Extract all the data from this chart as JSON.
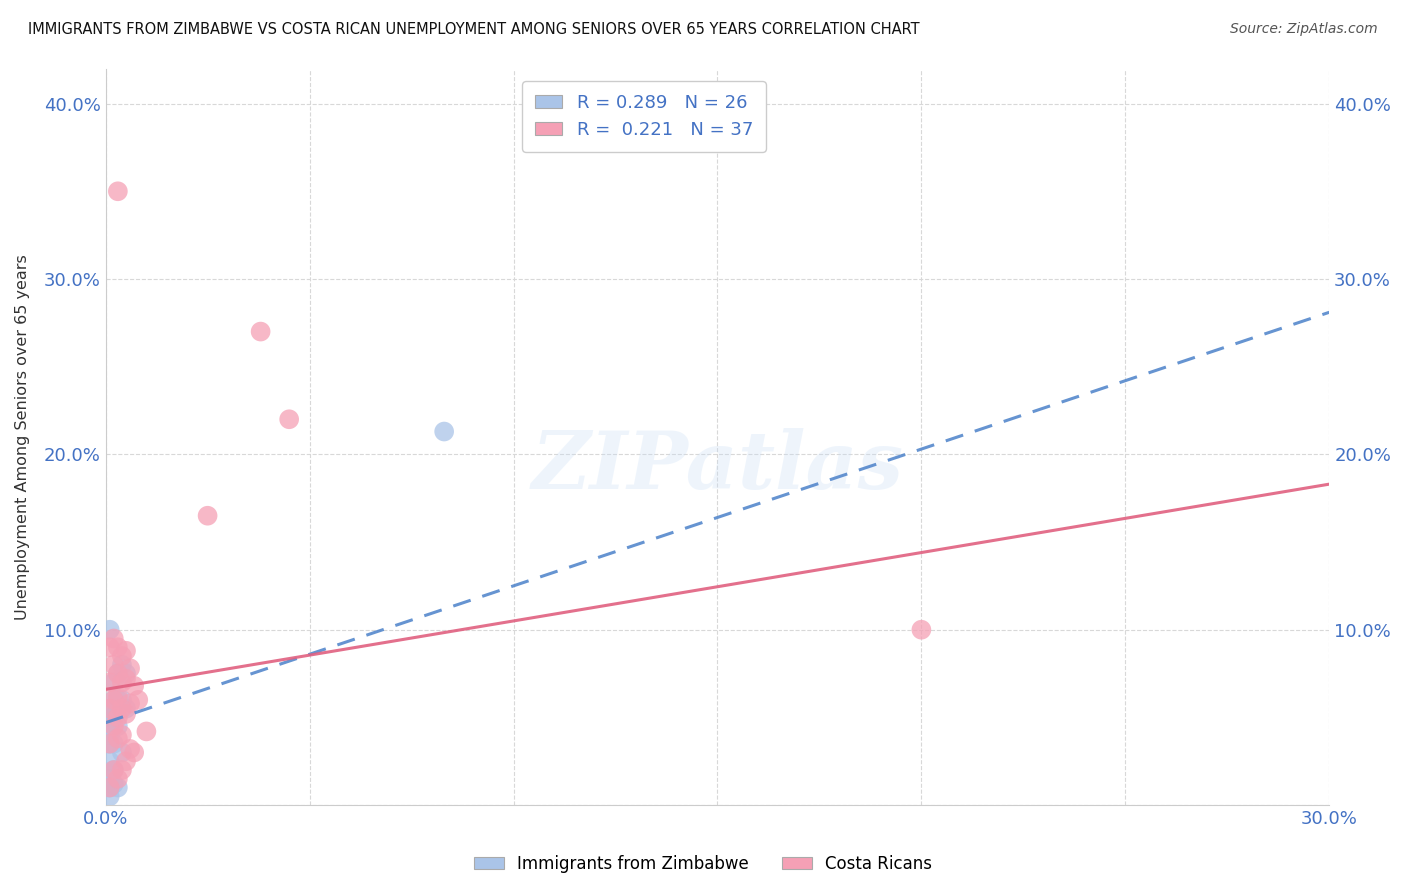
{
  "title": "IMMIGRANTS FROM ZIMBABWE VS COSTA RICAN UNEMPLOYMENT AMONG SENIORS OVER 65 YEARS CORRELATION CHART",
  "source": "Source: ZipAtlas.com",
  "ylabel": "Unemployment Among Seniors over 65 years",
  "xlim": [
    0.0,
    0.3
  ],
  "ylim": [
    0.0,
    0.42
  ],
  "x_ticks": [
    0.0,
    0.05,
    0.1,
    0.15,
    0.2,
    0.25,
    0.3
  ],
  "x_tick_labels": [
    "0.0%",
    "",
    "",
    "",
    "",
    "",
    "30.0%"
  ],
  "y_ticks": [
    0.0,
    0.1,
    0.2,
    0.3,
    0.4
  ],
  "y_tick_labels_left": [
    "",
    "10.0%",
    "20.0%",
    "30.0%",
    "40.0%"
  ],
  "y_tick_labels_right": [
    "",
    "10.0%",
    "20.0%",
    "30.0%",
    "40.0%"
  ],
  "legend_blue_R": "0.289",
  "legend_blue_N": "26",
  "legend_pink_R": "0.221",
  "legend_pink_N": "37",
  "legend_label_blue": "Immigrants from Zimbabwe",
  "legend_label_pink": "Costa Ricans",
  "blue_color": "#aac4e8",
  "pink_color": "#f5a0b5",
  "blue_line_color": "#5588cc",
  "pink_line_color": "#e06080",
  "watermark": "ZIPatlas",
  "background_color": "#ffffff",
  "grid_color": "#d8d8d8",
  "blue_trend_intercept": 0.047,
  "blue_trend_slope": 0.78,
  "pink_trend_intercept": 0.066,
  "pink_trend_slope": 0.39,
  "blue_x": [
    0.001,
    0.001,
    0.001,
    0.001,
    0.001,
    0.001,
    0.001,
    0.001,
    0.001,
    0.002,
    0.002,
    0.002,
    0.002,
    0.002,
    0.002,
    0.003,
    0.003,
    0.003,
    0.003,
    0.004,
    0.004,
    0.004,
    0.005,
    0.005,
    0.083,
    0.001
  ],
  "blue_y": [
    0.055,
    0.05,
    0.045,
    0.04,
    0.035,
    0.025,
    0.015,
    0.01,
    0.005,
    0.07,
    0.06,
    0.05,
    0.035,
    0.02,
    0.012,
    0.075,
    0.06,
    0.045,
    0.01,
    0.08,
    0.06,
    0.03,
    0.075,
    0.055,
    0.213,
    0.1
  ],
  "pink_x": [
    0.001,
    0.001,
    0.001,
    0.001,
    0.001,
    0.002,
    0.002,
    0.002,
    0.002,
    0.002,
    0.003,
    0.003,
    0.003,
    0.003,
    0.003,
    0.003,
    0.004,
    0.004,
    0.004,
    0.004,
    0.004,
    0.005,
    0.005,
    0.005,
    0.005,
    0.006,
    0.006,
    0.006,
    0.007,
    0.007,
    0.008,
    0.01,
    0.025,
    0.038,
    0.045,
    0.2,
    0.003
  ],
  "pink_y": [
    0.09,
    0.07,
    0.055,
    0.035,
    0.01,
    0.095,
    0.08,
    0.06,
    0.045,
    0.02,
    0.09,
    0.075,
    0.062,
    0.05,
    0.038,
    0.015,
    0.085,
    0.07,
    0.055,
    0.04,
    0.02,
    0.088,
    0.072,
    0.052,
    0.025,
    0.078,
    0.058,
    0.032,
    0.068,
    0.03,
    0.06,
    0.042,
    0.165,
    0.27,
    0.22,
    0.1,
    0.35
  ]
}
